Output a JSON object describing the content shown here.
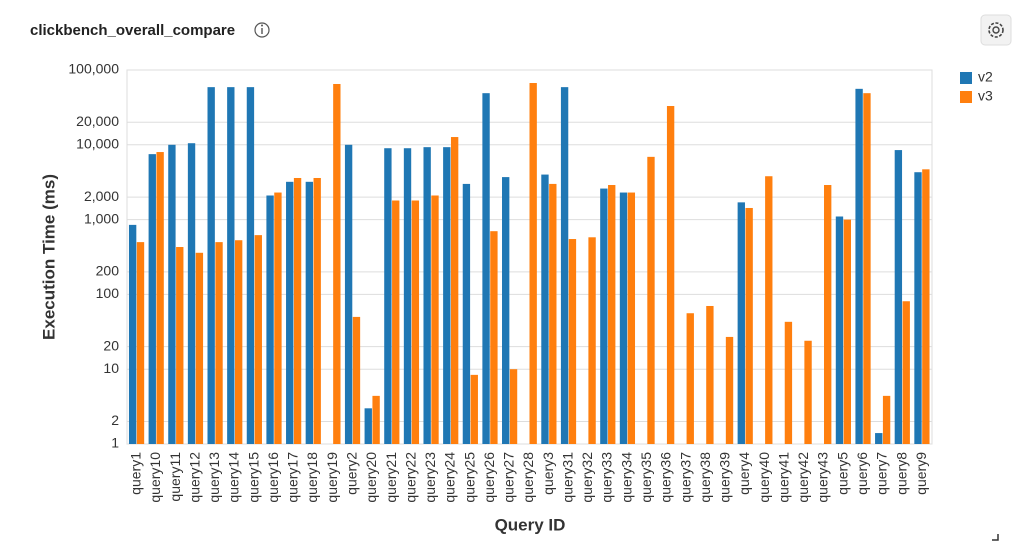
{
  "chart_data": {
    "type": "bar",
    "title": "clickbench_overall_compare",
    "x_label": "Query ID",
    "y_label": "Execution Time (ms)",
    "categories": [
      "query1",
      "query10",
      "query11",
      "query12",
      "query13",
      "query14",
      "query15",
      "query16",
      "query17",
      "query18",
      "query19",
      "query2",
      "query20",
      "query21",
      "query22",
      "query23",
      "query24",
      "query25",
      "query26",
      "query27",
      "query28",
      "query3",
      "query31",
      "query32",
      "query33",
      "query34",
      "query35",
      "query36",
      "query37",
      "query38",
      "query39",
      "query4",
      "query40",
      "query41",
      "query42",
      "query43",
      "query5",
      "query6",
      "query7",
      "query8",
      "query9"
    ],
    "series": [
      {
        "name": "v2",
        "color": "#1f77b4",
        "values": [
          850,
          7500,
          10000,
          10500,
          59000,
          59000,
          59000,
          2100,
          3200,
          3200,
          null,
          10000,
          3,
          9000,
          9000,
          9300,
          9300,
          3000,
          49000,
          3700,
          null,
          4000,
          59000,
          null,
          2600,
          2300,
          null,
          null,
          null,
          null,
          null,
          1700,
          null,
          null,
          null,
          null,
          1100,
          56000,
          1.4,
          8500,
          4300
        ]
      },
      {
        "name": "v3",
        "color": "#ff7f0e",
        "values": [
          500,
          8000,
          430,
          360,
          500,
          530,
          620,
          2300,
          3600,
          3600,
          65000,
          50,
          4.4,
          1800,
          1800,
          2100,
          12700,
          8.4,
          700,
          10,
          67000,
          3000,
          550,
          580,
          2900,
          2300,
          6900,
          33000,
          56,
          70,
          27,
          1430,
          3800,
          43,
          24,
          2900,
          1000,
          49000,
          4.4,
          81,
          4700
        ]
      }
    ],
    "log_scale": true,
    "grid": true,
    "ylim": [
      1,
      100000
    ],
    "yticks": [
      1,
      2,
      10,
      20,
      100,
      200,
      {
        "value": 1000,
        "label": "1,000"
      },
      {
        "value": 2000,
        "label": "2,000"
      },
      {
        "value": 10000,
        "label": "10,000"
      },
      {
        "value": 20000,
        "label": "20,000"
      },
      {
        "value": 100000,
        "label": "100,000"
      }
    ],
    "legend": "top-right"
  }
}
